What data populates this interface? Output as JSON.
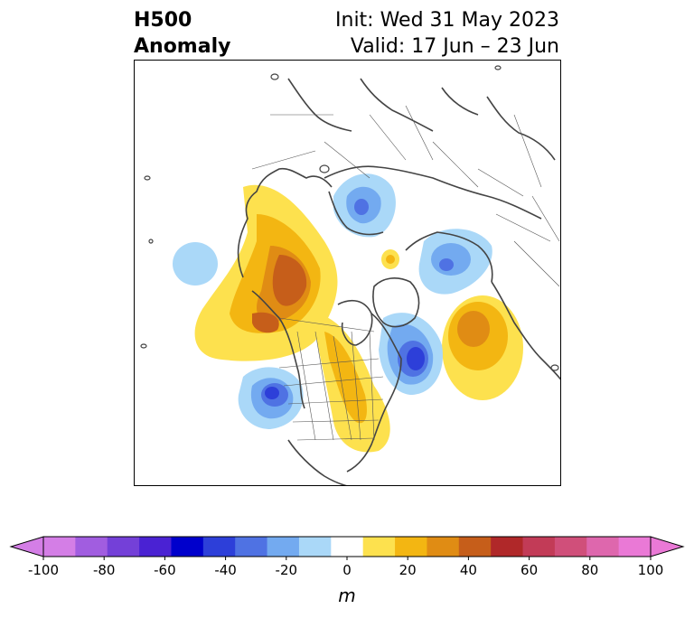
{
  "header": {
    "title_line1": "H500",
    "title_line2": "Anomaly",
    "init_label": "Init: Wed 31 May 2023",
    "valid_label": "Valid: 17 Jun – 23 Jun"
  },
  "colorbar": {
    "unit": "m",
    "tick_labels": [
      "-100",
      "-80",
      "-60",
      "-40",
      "-20",
      "0",
      "20",
      "40",
      "60",
      "80",
      "100"
    ],
    "levels": [
      -100,
      -90,
      -80,
      -70,
      -60,
      -50,
      -40,
      -30,
      -20,
      -10,
      10,
      20,
      30,
      40,
      50,
      60,
      70,
      80,
      90,
      100
    ],
    "colors": [
      "#d47ee6",
      "#a15de0",
      "#7440d8",
      "#4a22d3",
      "#0000cc",
      "#2d3fd9",
      "#4f72e3",
      "#73aaf0",
      "#aad8f8",
      "#ffffff",
      "#fde14e",
      "#f3b612",
      "#e08c14",
      "#c65e1a",
      "#b02829",
      "#c23b57",
      "#d04f7a",
      "#de67ad",
      "#ea79d6"
    ],
    "under_color": "#d47ee6",
    "over_color": "#ea79d6"
  }
}
